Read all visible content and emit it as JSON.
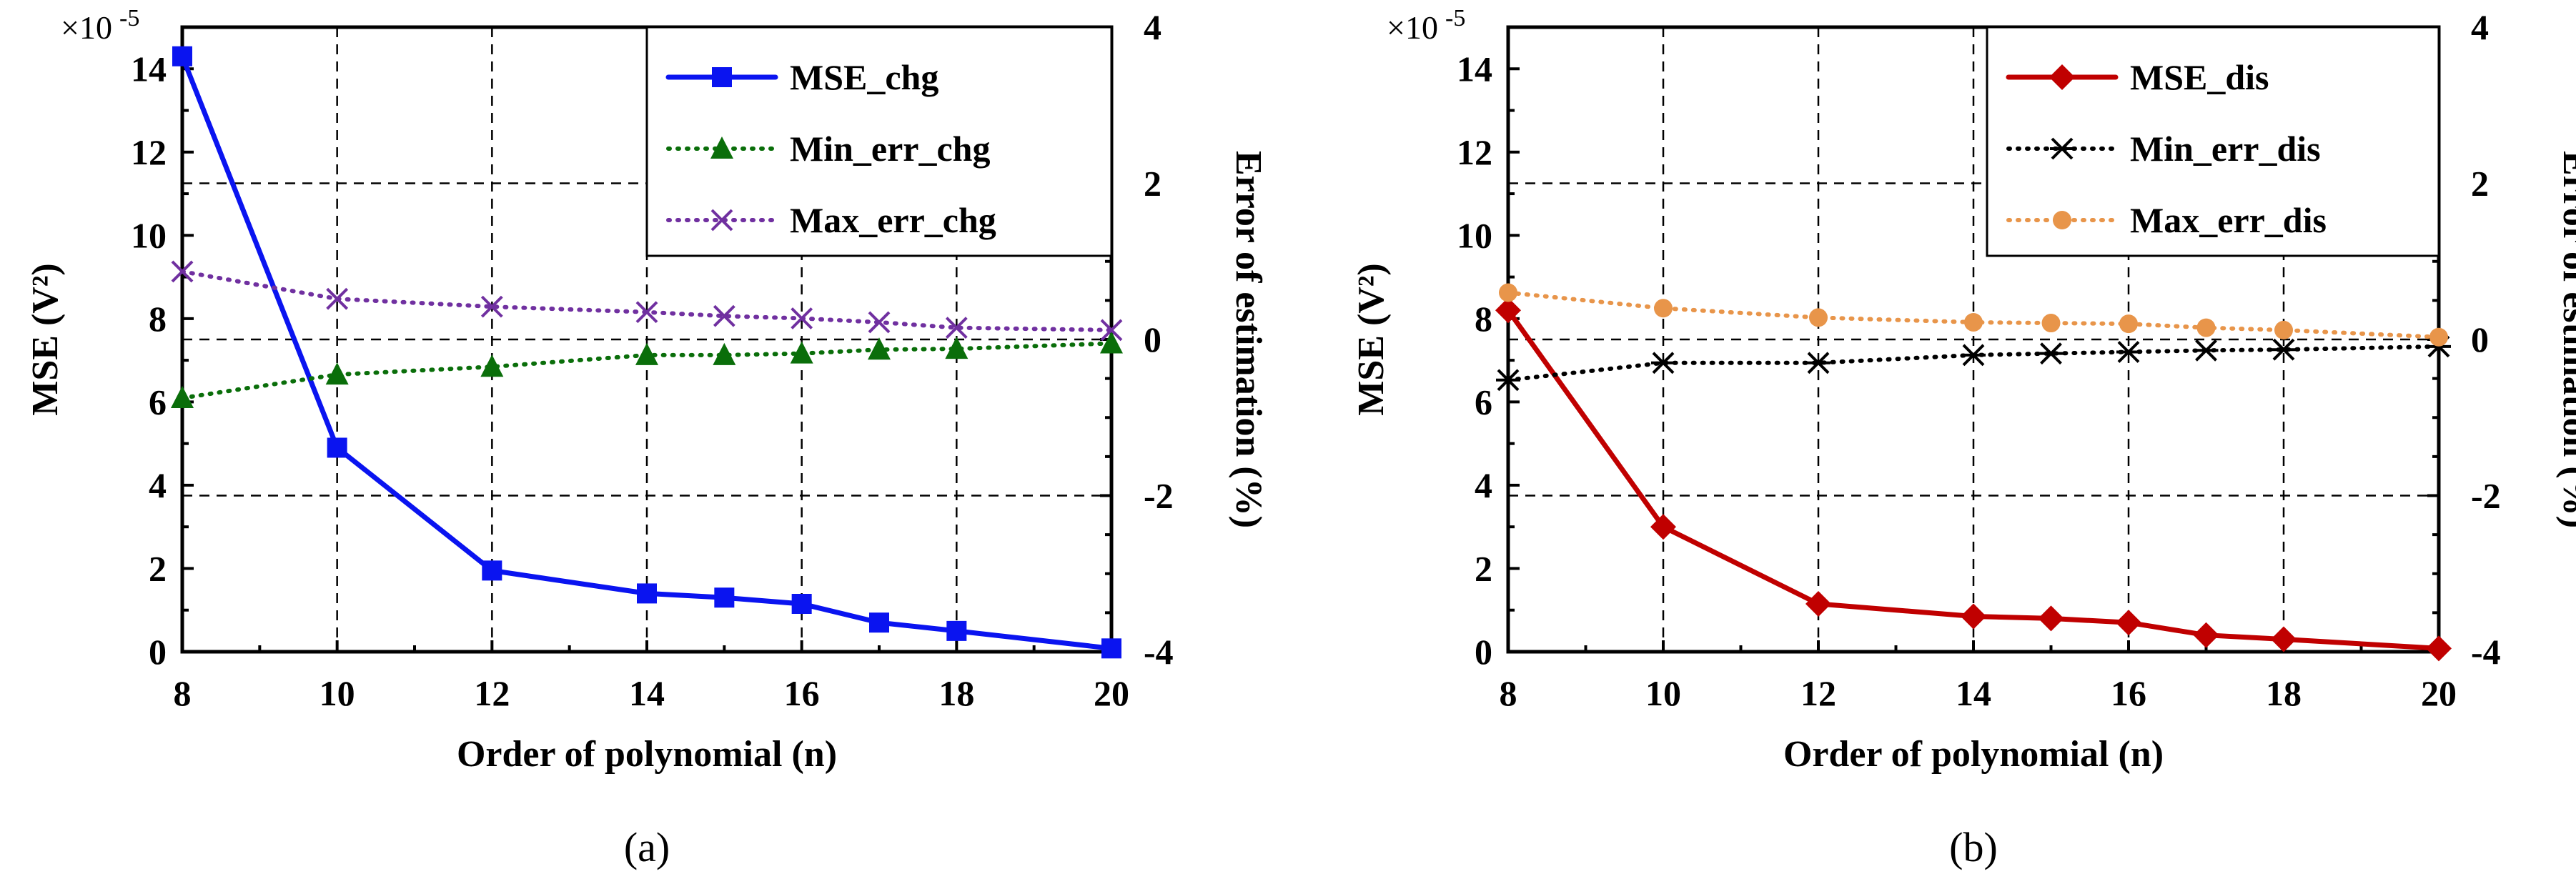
{
  "chart_data": [
    {
      "type": "line",
      "panel_label": "(a)",
      "xlabel": "Order of polynomial (n)",
      "ylabel_left": "MSE (V²)",
      "ylabel_right": "Error of estimation (%)",
      "y_multiplier": "×10",
      "y_multiplier_exp": "-5",
      "x_ticks": [
        8,
        10,
        12,
        14,
        16,
        18,
        20
      ],
      "xlim": [
        8,
        20
      ],
      "ylim_left": [
        0,
        15
      ],
      "yticks_left": [
        0,
        2,
        4,
        6,
        8,
        10,
        12,
        14
      ],
      "ylim_right": [
        -4,
        4
      ],
      "yticks_right": [
        -4,
        -2,
        0,
        2,
        4
      ],
      "x": [
        8,
        10,
        12,
        14,
        15,
        16,
        17,
        18,
        20
      ],
      "series": [
        {
          "name": "MSE_chg",
          "axis": "left",
          "color": "#0a14f0",
          "line": "solid",
          "marker": "square",
          "values": [
            14.3,
            4.9,
            1.95,
            1.4,
            1.3,
            1.15,
            0.7,
            0.5,
            0.08
          ]
        },
        {
          "name": "Min_err_chg",
          "axis": "right",
          "color": "#0a6e0a",
          "line": "dotted",
          "marker": "triangle",
          "values": [
            -0.75,
            -0.45,
            -0.35,
            -0.2,
            -0.2,
            -0.18,
            -0.13,
            -0.12,
            -0.05
          ]
        },
        {
          "name": "Max_err_chg",
          "axis": "right",
          "color": "#7030a0",
          "line": "dotted",
          "marker": "x",
          "values": [
            0.87,
            0.52,
            0.42,
            0.35,
            0.3,
            0.27,
            0.22,
            0.15,
            0.12
          ]
        }
      ]
    },
    {
      "type": "line",
      "panel_label": "(b)",
      "xlabel": "Order of polynomial (n)",
      "ylabel_left": "MSE (V²)",
      "ylabel_right": "Error of estimation (%)",
      "y_multiplier": "×10",
      "y_multiplier_exp": "-5",
      "x_ticks": [
        8,
        10,
        12,
        14,
        16,
        18,
        20
      ],
      "xlim": [
        8,
        20
      ],
      "ylim_left": [
        0,
        15
      ],
      "yticks_left": [
        0,
        2,
        4,
        6,
        8,
        10,
        12,
        14
      ],
      "ylim_right": [
        -4,
        4
      ],
      "yticks_right": [
        -4,
        -2,
        0,
        2,
        4
      ],
      "x": [
        8,
        10,
        12,
        14,
        15,
        16,
        17,
        18,
        20
      ],
      "series": [
        {
          "name": "MSE_dis",
          "axis": "left",
          "color": "#c00000",
          "line": "solid",
          "marker": "diamond",
          "values": [
            8.2,
            3.0,
            1.15,
            0.85,
            0.8,
            0.7,
            0.4,
            0.3,
            0.08
          ]
        },
        {
          "name": "Min_err_dis",
          "axis": "right",
          "color": "#000000",
          "line": "dotted",
          "marker": "asterisk",
          "values": [
            -0.52,
            -0.3,
            -0.3,
            -0.2,
            -0.18,
            -0.16,
            -0.14,
            -0.13,
            -0.09
          ]
        },
        {
          "name": "Max_err_dis",
          "axis": "right",
          "color": "#e8954a",
          "line": "dotted",
          "marker": "circle",
          "values": [
            0.6,
            0.4,
            0.28,
            0.22,
            0.21,
            0.2,
            0.15,
            0.12,
            0.03
          ]
        }
      ]
    }
  ]
}
